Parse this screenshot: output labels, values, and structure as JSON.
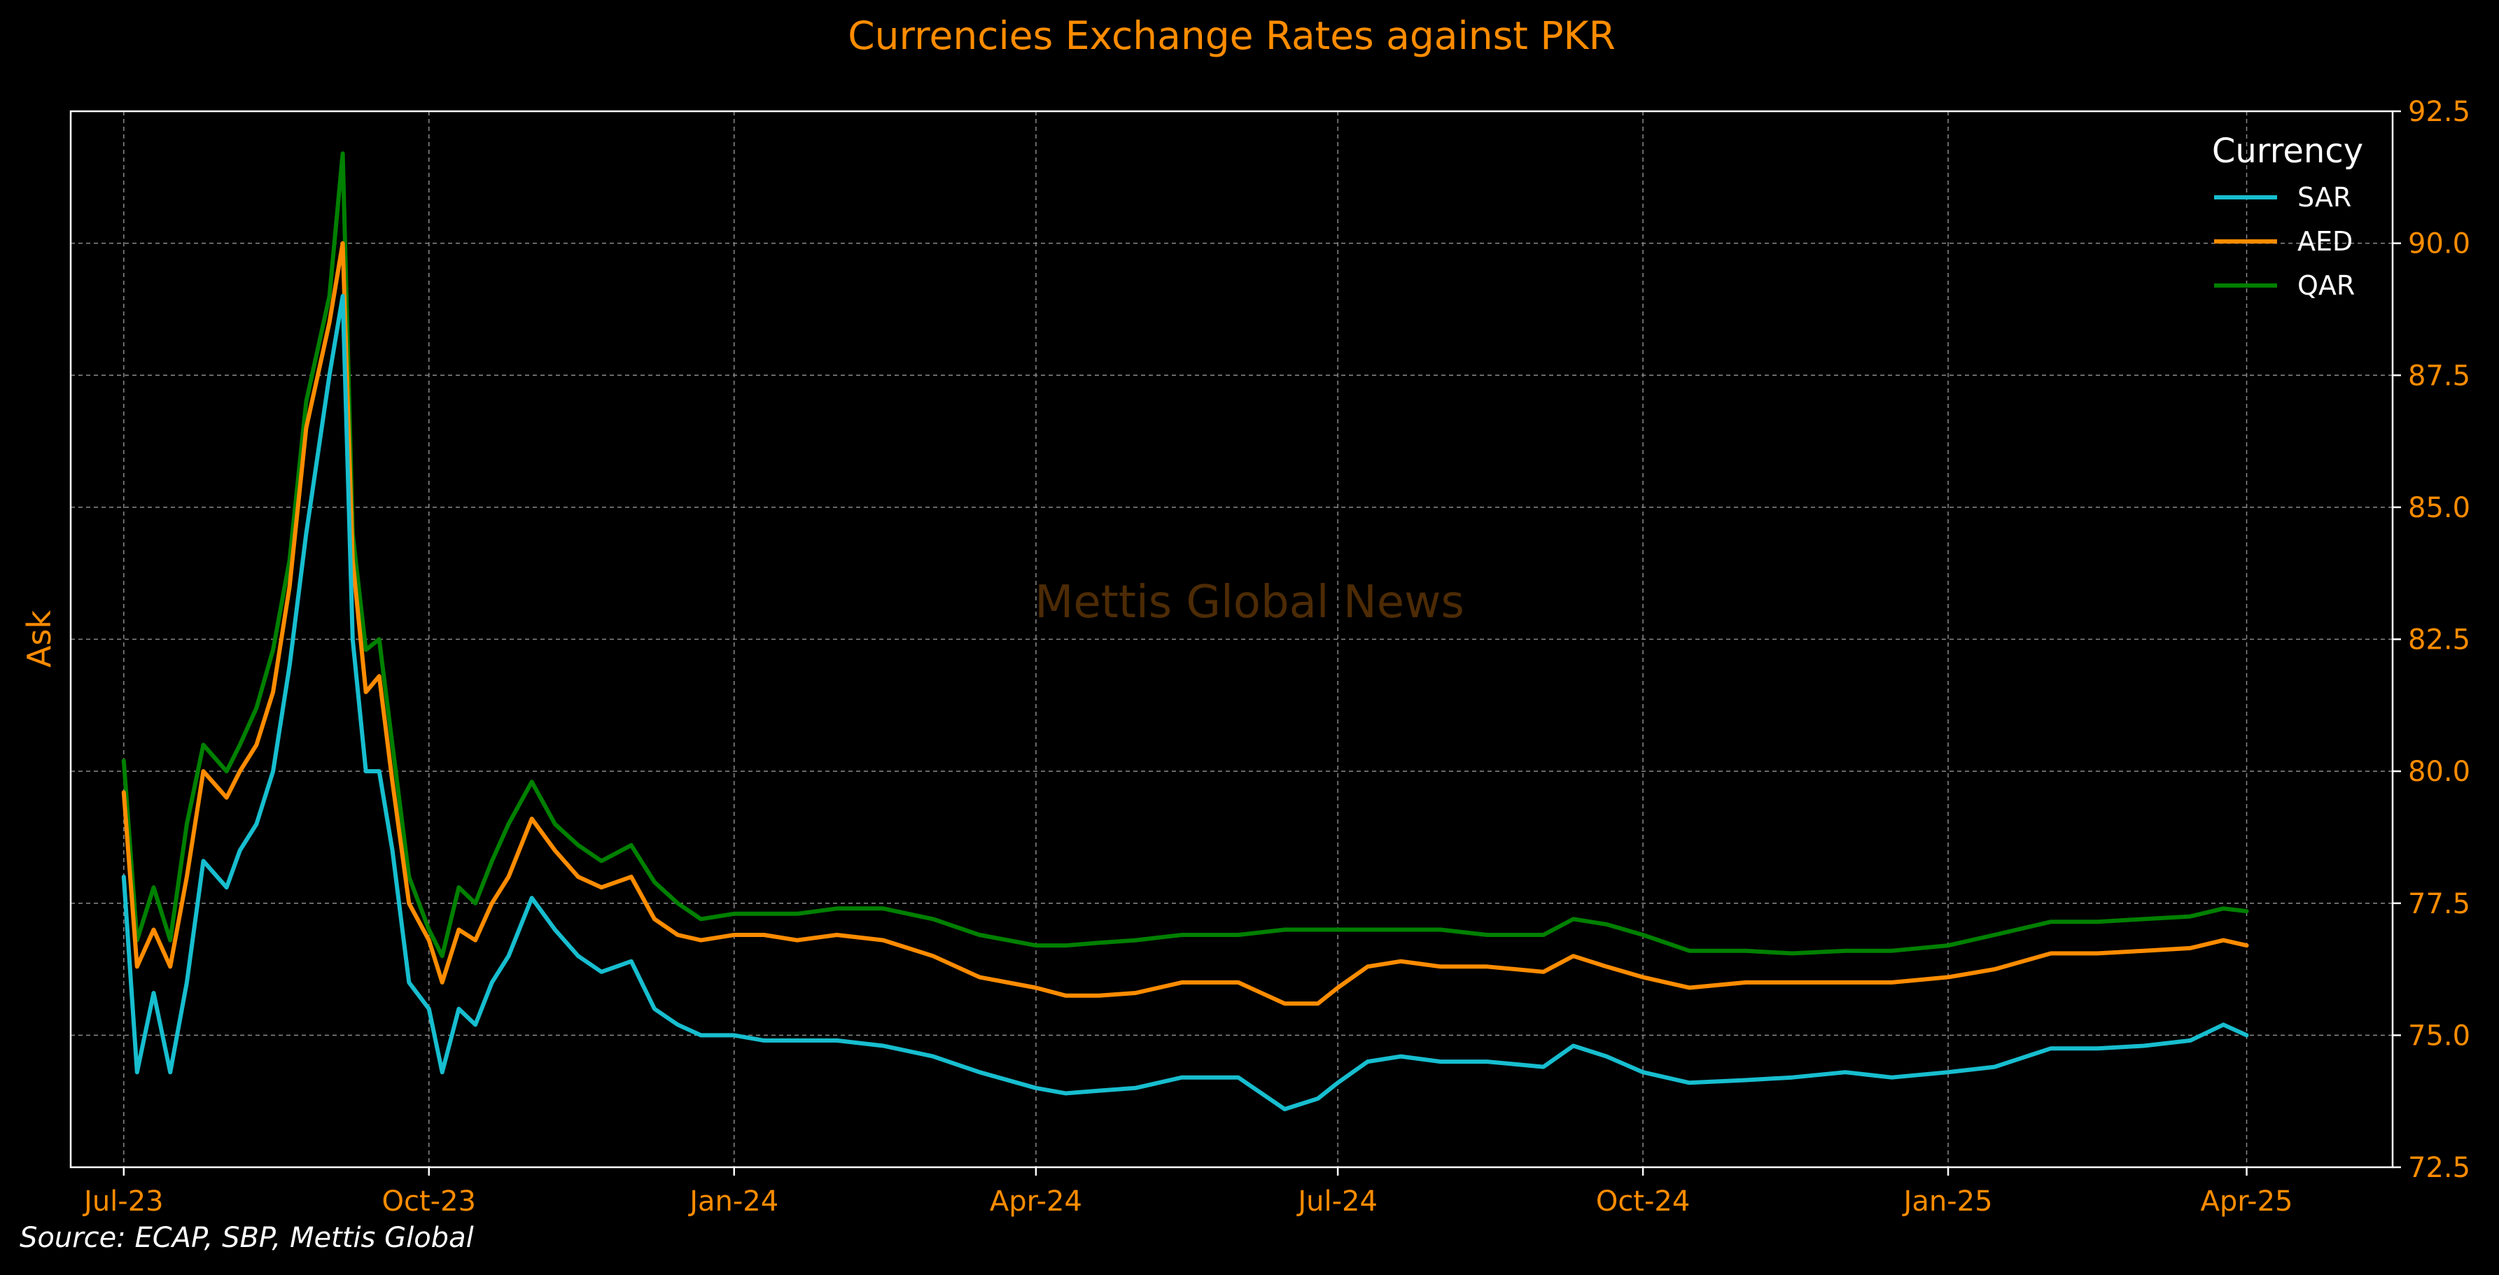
{
  "chart_data": {
    "type": "line",
    "title": "Currencies Exchange Rates against PKR",
    "xlabel": "",
    "ylabel": "Ask",
    "ylim": [
      72.5,
      92.5
    ],
    "yaxis_side": "right",
    "grid": true,
    "watermark": "Mettis Global News",
    "source": "Source: ECAP, SBP, Mettis Global",
    "x_ticks": [
      "Jul-23",
      "Oct-23",
      "Jan-24",
      "Apr-24",
      "Jul-24",
      "Oct-24",
      "Jan-25",
      "Apr-25"
    ],
    "y_ticks": [
      "72.5",
      "75.0",
      "77.5",
      "80.0",
      "82.5",
      "85.0",
      "87.5",
      "90.0",
      "92.5"
    ],
    "legend": {
      "title": "Currency",
      "placement": "top-right"
    },
    "colors": {
      "SAR": "#17becf",
      "AED": "#ff8c00",
      "QAR": "#008000",
      "text": "#ff8c00",
      "axes": "#ffffff"
    },
    "x": [
      "2023-07-01",
      "2023-07-05",
      "2023-07-10",
      "2023-07-15",
      "2023-07-20",
      "2023-07-25",
      "2023-08-01",
      "2023-08-05",
      "2023-08-10",
      "2023-08-15",
      "2023-08-20",
      "2023-08-25",
      "2023-09-01",
      "2023-09-05",
      "2023-09-08",
      "2023-09-12",
      "2023-09-16",
      "2023-09-20",
      "2023-09-25",
      "2023-10-01",
      "2023-10-05",
      "2023-10-10",
      "2023-10-15",
      "2023-10-20",
      "2023-10-25",
      "2023-11-01",
      "2023-11-08",
      "2023-11-15",
      "2023-11-22",
      "2023-12-01",
      "2023-12-08",
      "2023-12-15",
      "2023-12-22",
      "2024-01-01",
      "2024-01-10",
      "2024-01-20",
      "2024-02-01",
      "2024-02-15",
      "2024-03-01",
      "2024-03-15",
      "2024-04-01",
      "2024-04-10",
      "2024-04-20",
      "2024-05-01",
      "2024-05-15",
      "2024-06-01",
      "2024-06-15",
      "2024-06-25",
      "2024-07-01",
      "2024-07-10",
      "2024-07-20",
      "2024-08-01",
      "2024-08-15",
      "2024-09-01",
      "2024-09-10",
      "2024-09-20",
      "2024-10-01",
      "2024-10-15",
      "2024-11-01",
      "2024-11-15",
      "2024-12-01",
      "2024-12-15",
      "2025-01-01",
      "2025-01-15",
      "2025-02-01",
      "2025-02-15",
      "2025-03-01",
      "2025-03-15",
      "2025-03-25",
      "2025-04-01"
    ],
    "series": [
      {
        "name": "SAR",
        "values": [
          78.0,
          74.3,
          75.8,
          74.3,
          76.0,
          78.3,
          77.8,
          78.5,
          79.0,
          80.0,
          82.0,
          84.5,
          87.5,
          89.0,
          82.5,
          80.0,
          80.0,
          78.5,
          76.0,
          75.5,
          74.3,
          75.5,
          75.2,
          76.0,
          76.5,
          77.6,
          77.0,
          76.5,
          76.2,
          76.4,
          75.5,
          75.2,
          75.0,
          75.0,
          74.9,
          74.9,
          74.9,
          74.8,
          74.6,
          74.3,
          74.0,
          73.9,
          73.95,
          74.0,
          74.2,
          74.2,
          73.6,
          73.8,
          74.1,
          74.5,
          74.6,
          74.5,
          74.5,
          74.4,
          74.8,
          74.6,
          74.3,
          74.1,
          74.15,
          74.2,
          74.3,
          74.2,
          74.3,
          74.4,
          74.75,
          74.75,
          74.8,
          74.9,
          75.2,
          75.0
        ]
      },
      {
        "name": "AED",
        "values": [
          79.6,
          76.3,
          77.0,
          76.3,
          78.0,
          80.0,
          79.5,
          80.0,
          80.5,
          81.5,
          83.5,
          86.5,
          88.5,
          90.0,
          84.0,
          81.5,
          81.8,
          79.8,
          77.5,
          76.8,
          76.0,
          77.0,
          76.8,
          77.5,
          78.0,
          79.1,
          78.5,
          78.0,
          77.8,
          78.0,
          77.2,
          76.9,
          76.8,
          76.9,
          76.9,
          76.8,
          76.9,
          76.8,
          76.5,
          76.1,
          75.9,
          75.75,
          75.75,
          75.8,
          76.0,
          76.0,
          75.6,
          75.6,
          75.9,
          76.3,
          76.4,
          76.3,
          76.3,
          76.2,
          76.5,
          76.3,
          76.1,
          75.9,
          76.0,
          76.0,
          76.0,
          76.0,
          76.1,
          76.25,
          76.55,
          76.55,
          76.6,
          76.65,
          76.8,
          76.7
        ]
      },
      {
        "name": "QAR",
        "values": [
          80.2,
          76.8,
          77.8,
          76.8,
          79.0,
          80.5,
          80.0,
          80.5,
          81.2,
          82.3,
          84.0,
          87.0,
          89.0,
          91.7,
          84.5,
          82.3,
          82.5,
          80.5,
          78.0,
          77.0,
          76.5,
          77.8,
          77.5,
          78.3,
          79.0,
          79.8,
          79.0,
          78.6,
          78.3,
          78.6,
          77.9,
          77.5,
          77.2,
          77.3,
          77.3,
          77.3,
          77.4,
          77.4,
          77.2,
          76.9,
          76.7,
          76.7,
          76.75,
          76.8,
          76.9,
          76.9,
          77.0,
          77.0,
          77.0,
          77.0,
          77.0,
          77.0,
          76.9,
          76.9,
          77.2,
          77.1,
          76.9,
          76.6,
          76.6,
          76.55,
          76.6,
          76.6,
          76.7,
          76.9,
          77.15,
          77.15,
          77.2,
          77.25,
          77.4,
          77.35
        ]
      }
    ]
  }
}
